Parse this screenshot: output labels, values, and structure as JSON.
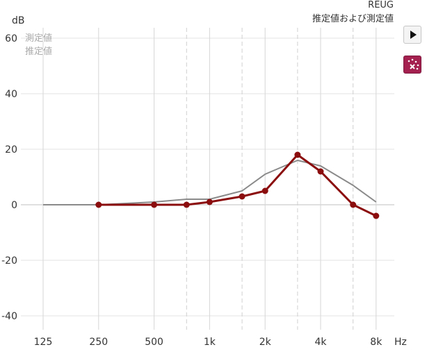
{
  "header": {
    "line1": "REUG",
    "line2": "推定値および測定値"
  },
  "legend": {
    "measured_label": "測定値",
    "estimated_label": "推定値"
  },
  "icons": {
    "play": "play-icon",
    "tool": "sparkle-cross-icon"
  },
  "colors": {
    "measured": "#8b0d0d",
    "estimated": "#8a8a8a",
    "tool_button": "#a3204f"
  },
  "chart_data": {
    "type": "line",
    "title": "REUG",
    "subtitle": "推定値および測定値",
    "ylabel": "dB",
    "xlabel": "Hz",
    "ylim": [
      -45,
      62
    ],
    "yticks": [
      60,
      40,
      20,
      0,
      -20,
      -40
    ],
    "ytick_labels": [
      "60",
      "40",
      "20",
      "0",
      "-20",
      "-40"
    ],
    "xticks": [
      125,
      250,
      500,
      1000,
      2000,
      4000,
      8000
    ],
    "xtick_labels": [
      "125",
      "250",
      "500",
      "1k",
      "2k",
      "4k",
      "8k"
    ],
    "x_scale": "log2",
    "dashed_x": [
      750,
      1500,
      3000,
      6000
    ],
    "grid": true,
    "series": [
      {
        "name": "測定値",
        "color": "#8b0d0d",
        "markers": true,
        "x": [
          250,
          500,
          750,
          1000,
          1500,
          2000,
          3000,
          4000,
          6000,
          8000
        ],
        "y": [
          0,
          0,
          0,
          1,
          3,
          5,
          18,
          12,
          0,
          -4
        ]
      },
      {
        "name": "推定値",
        "color": "#8a8a8a",
        "markers": false,
        "x": [
          125,
          250,
          500,
          750,
          1000,
          1500,
          2000,
          3000,
          4000,
          6000,
          8000
        ],
        "y": [
          0,
          0,
          1,
          2,
          2,
          5,
          11,
          16,
          14,
          7,
          1
        ]
      }
    ]
  }
}
